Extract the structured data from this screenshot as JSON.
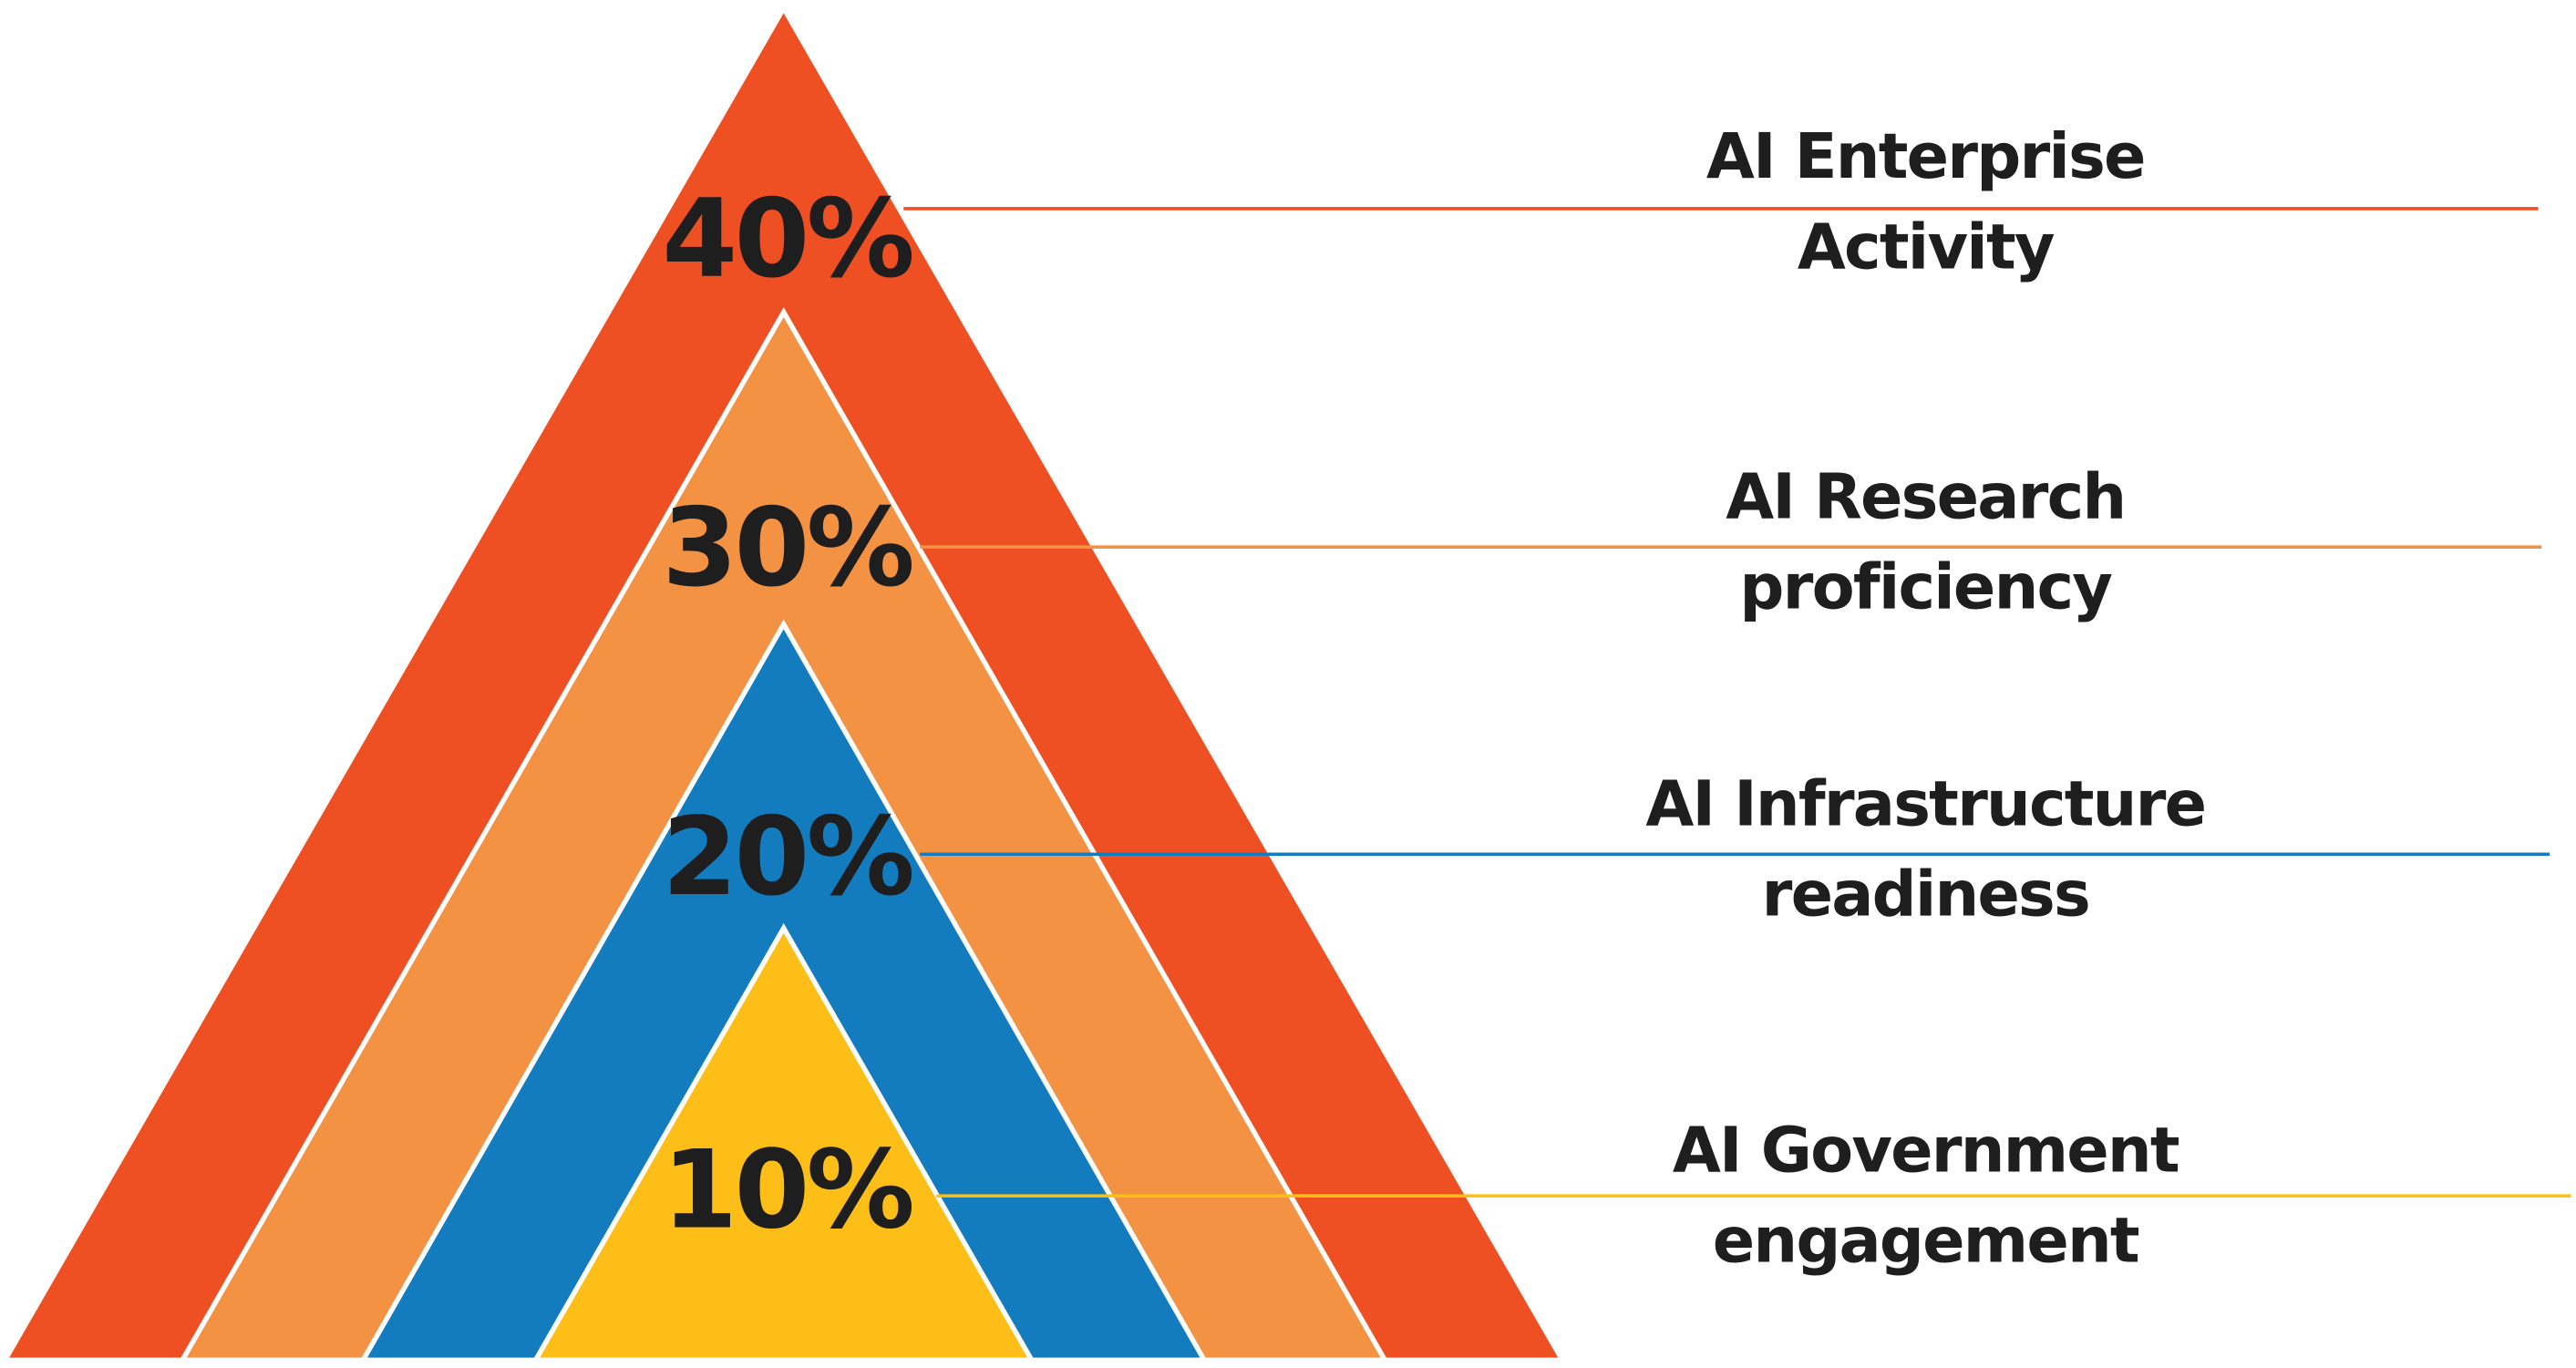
{
  "layers": [
    {
      "percent": "40%",
      "label_lines": [
        "AI Enterprise",
        "Activity"
      ],
      "color": "#ee5023"
    },
    {
      "percent": "30%",
      "label_lines": [
        "AI Research",
        "proficiency"
      ],
      "color": "#f49244"
    },
    {
      "percent": "20%",
      "label_lines": [
        "AI Infrastructure",
        "readiness"
      ],
      "color": "#137cbf"
    },
    {
      "percent": "10%",
      "label_lines": [
        "AI Government",
        "engagement"
      ],
      "color": "#fdbf17"
    }
  ]
}
